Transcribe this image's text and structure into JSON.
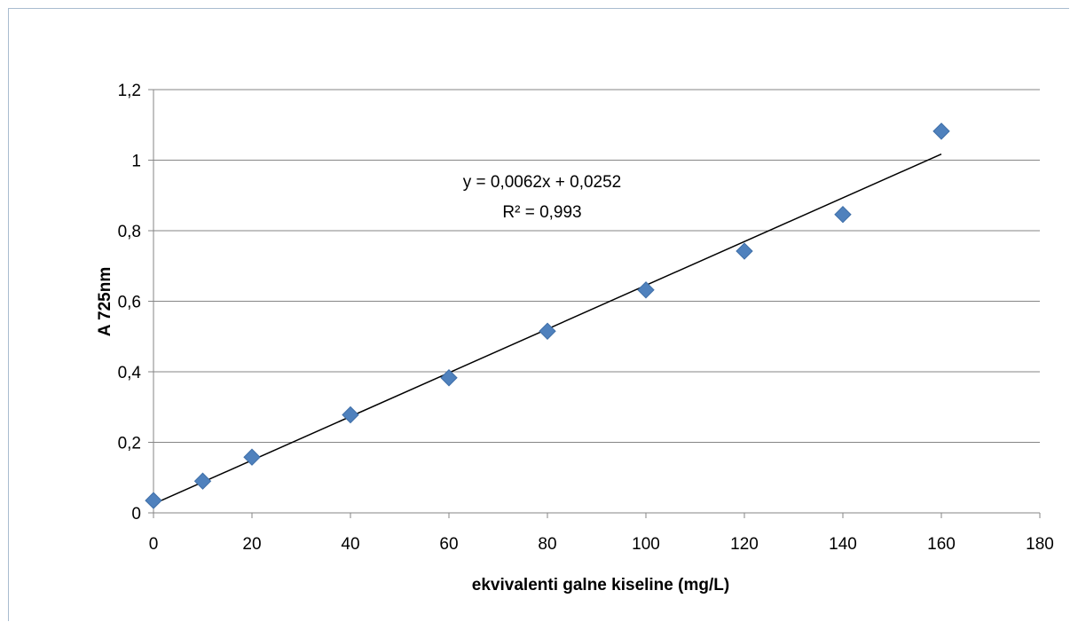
{
  "chart_data": {
    "type": "scatter",
    "xlabel": "ekvivalenti galne kiseline (mg/L)",
    "ylabel": "A 725nm",
    "xlim": [
      0,
      180
    ],
    "ylim": [
      0,
      1.2
    ],
    "x_ticks": [
      "0",
      "20",
      "40",
      "60",
      "80",
      "100",
      "120",
      "140",
      "160",
      "180"
    ],
    "y_ticks": [
      "0",
      "0,2",
      "0,4",
      "0,6",
      "0,8",
      "1",
      "1,2"
    ],
    "grid": "horizontal",
    "marker_color": "#4f81bd",
    "series": [
      {
        "x": [
          0,
          10,
          20,
          40,
          60,
          80,
          100,
          120,
          140,
          160
        ],
        "y": [
          0.035,
          0.09,
          0.158,
          0.278,
          0.383,
          0.515,
          0.632,
          0.742,
          0.846,
          1.082
        ]
      }
    ],
    "trendline": {
      "slope": 0.0062,
      "intercept": 0.0252,
      "x_range": [
        0,
        160
      ],
      "equation": "y = 0,0062x + 0,0252",
      "r_squared": "R² = 0,993"
    }
  }
}
